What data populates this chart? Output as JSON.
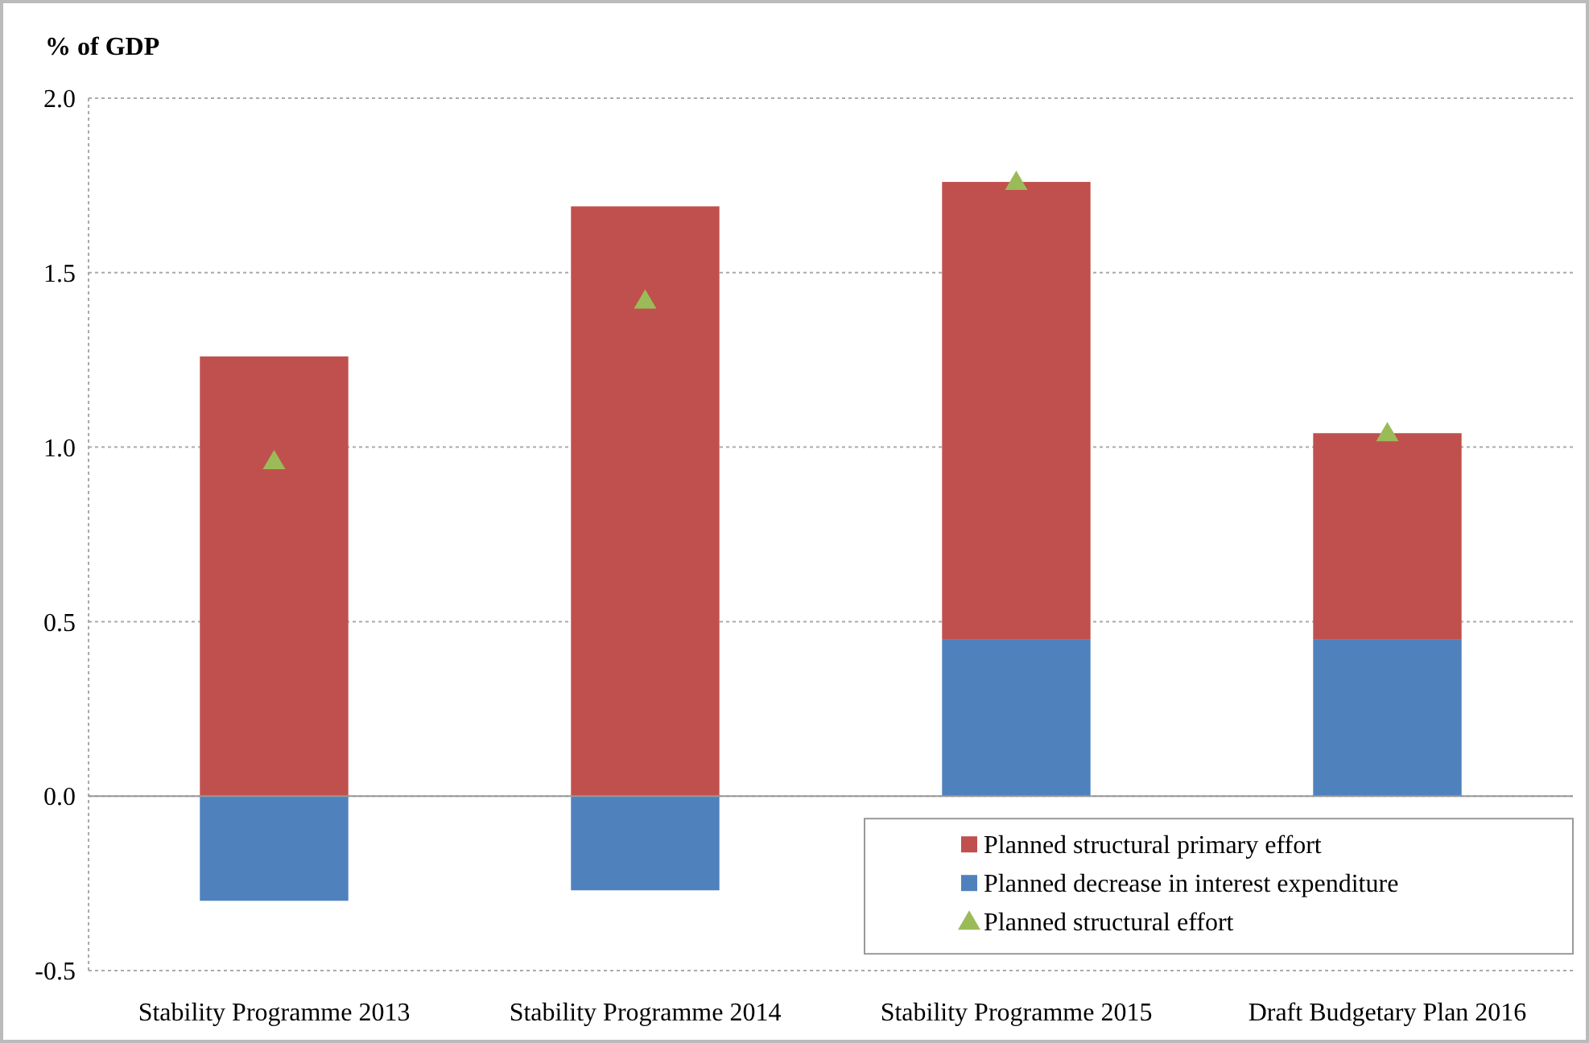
{
  "chart_data": {
    "type": "bar",
    "ylabel": "% of GDP",
    "stacked": true,
    "categories": [
      "Stability Programme 2013",
      "Stability Programme 2014",
      "Stability Programme 2015",
      "Draft Budgetary Plan 2016"
    ],
    "series": [
      {
        "name": "Planned decrease in interest expenditure",
        "color": "#4f81bd",
        "values": [
          -0.3,
          -0.27,
          0.45,
          0.45
        ]
      },
      {
        "name": "Planned structural primary effort",
        "color": "#c0504d",
        "values": [
          1.26,
          1.69,
          1.31,
          0.59
        ]
      },
      {
        "name": "Planned structural effort",
        "type": "scatter",
        "marker": "triangle",
        "color": "#9bbb59",
        "x": [
          "Stability Programme 2013",
          "Stability Programme 2014",
          "Stability Programme 2015",
          "Draft Budgetary Plan 2016"
        ],
        "values": [
          0.96,
          1.42,
          1.76,
          1.04
        ]
      }
    ],
    "ylim": [
      -0.5,
      2.0
    ],
    "yticks": [
      {
        "value": -0.5,
        "label": "-0.5"
      },
      {
        "value": 0,
        "label": "0.0"
      },
      {
        "value": 0.5,
        "label": "0.5"
      },
      {
        "value": 1,
        "label": "1.0"
      },
      {
        "value": 1.5,
        "label": "1.5"
      },
      {
        "value": 2,
        "label": "2.0"
      }
    ],
    "grid": "y",
    "legend": "bottom right"
  }
}
